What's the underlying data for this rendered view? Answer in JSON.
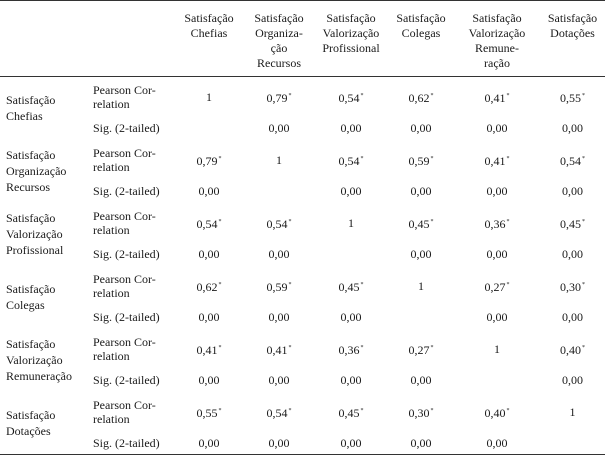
{
  "table": {
    "columns": [
      "Satisfação Chefias",
      "Satisfação Organiza-ção Recursos",
      "Satisfação Valorização Profissional",
      "Satisfação Colegas",
      "Satisfação Valorização Remunera-ração",
      "Satisfação Dotações"
    ],
    "column_lines": [
      [
        "Satisfação",
        "Chefias"
      ],
      [
        "Satisfação",
        "Organiza-",
        "ção",
        "Recursos"
      ],
      [
        "Satisfação",
        "Valorização",
        "Profissional"
      ],
      [
        "Satisfação",
        "Colegas"
      ],
      [
        "Satisfação",
        "Valorização",
        "Remune-",
        "ração"
      ],
      [
        "Satisfação",
        "Dotações"
      ]
    ],
    "stat_labels": {
      "pearson": "Pearson Cor- relation",
      "pearson_lines": [
        "Pearson Cor-",
        "relation"
      ],
      "sig": "Sig. (2-tailed)"
    },
    "significance_mark": "*",
    "rows": [
      {
        "var_lines": [
          "Satisfação",
          "Chefias"
        ],
        "pearson": [
          "1",
          "0,79",
          "0,54",
          "0,62",
          "0,41",
          "0,55"
        ],
        "pearson_star": [
          false,
          true,
          true,
          true,
          true,
          true
        ],
        "sig": [
          "",
          "0,00",
          "0,00",
          "0,00",
          "0,00",
          "0,00"
        ]
      },
      {
        "var_lines": [
          "Satisfação",
          "Organização",
          "Recursos"
        ],
        "pearson": [
          "0,79",
          "1",
          "0,54",
          "0,59",
          "0,41",
          "0,54"
        ],
        "pearson_star": [
          true,
          false,
          true,
          true,
          true,
          true
        ],
        "sig": [
          "0,00",
          "",
          "0,00",
          "0,00",
          "0,00",
          "0,00"
        ]
      },
      {
        "var_lines": [
          "Satisfação",
          "Valorização",
          "Profissional"
        ],
        "pearson": [
          "0,54",
          "0,54",
          "1",
          "0,45",
          "0,36",
          "0,45"
        ],
        "pearson_star": [
          true,
          true,
          false,
          true,
          true,
          true
        ],
        "sig": [
          "0,00",
          "0,00",
          "",
          "0,00",
          "0,00",
          "0,00"
        ]
      },
      {
        "var_lines": [
          "Satisfação",
          "Colegas"
        ],
        "pearson": [
          "0,62",
          "0,59",
          "0,45",
          "1",
          "0,27",
          "0,30"
        ],
        "pearson_star": [
          true,
          true,
          true,
          false,
          true,
          true
        ],
        "sig": [
          "0,00",
          "0,00",
          "0,00",
          "",
          "0,00",
          "0,00"
        ]
      },
      {
        "var_lines": [
          "Satisfação",
          "Valorização",
          "Remuneração"
        ],
        "pearson": [
          "0,41",
          "0,41",
          "0,36",
          "0,27",
          "1",
          "0,40"
        ],
        "pearson_star": [
          true,
          true,
          true,
          true,
          false,
          true
        ],
        "sig": [
          "0,00",
          "0,00",
          "0,00",
          "0,00",
          "",
          "0,00"
        ]
      },
      {
        "var_lines": [
          "Satisfação",
          "Dotações"
        ],
        "pearson": [
          "0,55",
          "0,54",
          "0,45",
          "0,30",
          "0,40",
          "1"
        ],
        "pearson_star": [
          true,
          true,
          true,
          true,
          true,
          false
        ],
        "sig": [
          "0,00",
          "0,00",
          "0,00",
          "0,00",
          "0,00",
          ""
        ]
      }
    ]
  }
}
